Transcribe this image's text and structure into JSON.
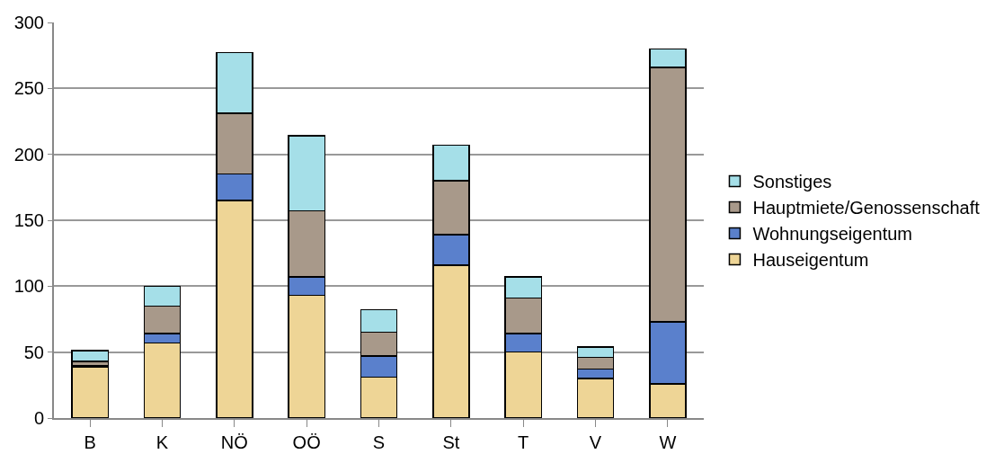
{
  "chart_data": {
    "type": "bar",
    "stacked": true,
    "categories": [
      "B",
      "K",
      "NÖ",
      "OÖ",
      "S",
      "St",
      "T",
      "V",
      "W"
    ],
    "series": [
      {
        "name": "Hauseigentum",
        "color": "#eed596",
        "values": [
          39,
          57,
          165,
          93,
          31,
          116,
          50,
          30,
          26
        ]
      },
      {
        "name": "Wohnungseigentum",
        "color": "#5a80cc",
        "values": [
          1,
          7,
          20,
          14,
          16,
          23,
          14,
          7,
          47
        ]
      },
      {
        "name": "Hauptmiete/Genossenschaft",
        "color": "#a8998a",
        "values": [
          3,
          21,
          46,
          50,
          18,
          41,
          27,
          9,
          193
        ]
      },
      {
        "name": "Sonstiges",
        "color": "#a5dfe8",
        "values": [
          8,
          15,
          46,
          57,
          17,
          27,
          16,
          8,
          14
        ]
      }
    ],
    "ylim": [
      0,
      300
    ],
    "yticks": [
      0,
      50,
      100,
      150,
      200,
      250,
      300
    ],
    "grid": "y",
    "legend": "right"
  }
}
